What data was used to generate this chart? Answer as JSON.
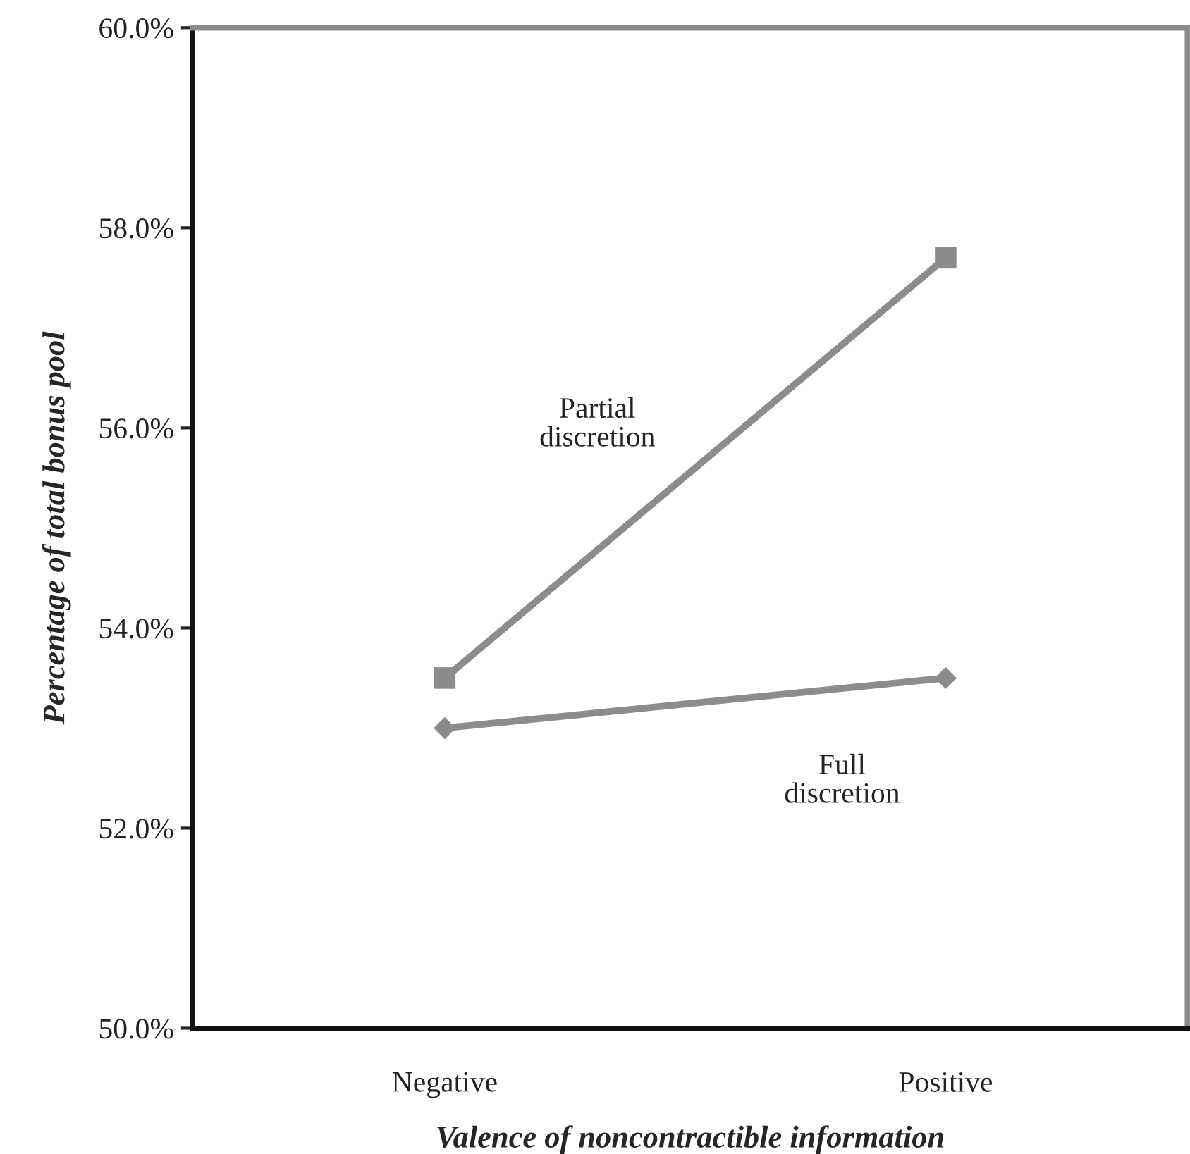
{
  "chart_data": {
    "type": "line",
    "xlabel": "Valence of noncontractible information",
    "ylabel": "Percentage of total bonus pool",
    "categories": [
      "Negative",
      "Positive"
    ],
    "series": [
      {
        "name": "Partial discretion",
        "color": "#8c8c8e",
        "values": [
          53.5,
          57.7
        ],
        "marker": "square"
      },
      {
        "name": "Full discretion",
        "color": "#8c8c8e",
        "values": [
          53.0,
          53.5
        ],
        "marker": "diamond"
      }
    ],
    "ylim": [
      50,
      60
    ],
    "yticks": [
      {
        "value": 50,
        "label": "50.0%"
      },
      {
        "value": 52,
        "label": "52.0%"
      },
      {
        "value": 54,
        "label": "54.0%"
      },
      {
        "value": 56,
        "label": "56.0%"
      },
      {
        "value": 58,
        "label": "58.0%"
      },
      {
        "value": 60,
        "label": "60.0%"
      }
    ],
    "grid": false,
    "legend": false,
    "line_style": "solid"
  }
}
